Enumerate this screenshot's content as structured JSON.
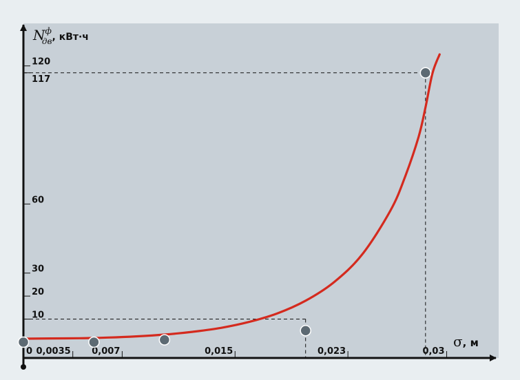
{
  "chart_data": {
    "type": "line",
    "y_label": {
      "symbol": "N",
      "superscript": "ф",
      "subscript": "дв",
      "unit": ", кВт·ч"
    },
    "x_label": {
      "symbol": "σ",
      "unit": ", м"
    },
    "y_ticks": [
      {
        "value": 10,
        "label": "10"
      },
      {
        "value": 20,
        "label": "20"
      },
      {
        "value": 30,
        "label": "30"
      },
      {
        "value": 60,
        "label": "60"
      },
      {
        "value": 117,
        "label": "117"
      },
      {
        "value": 120,
        "label": "120"
      }
    ],
    "x_ticks": [
      {
        "value": 0,
        "label": "0"
      },
      {
        "value": 0.0035,
        "label": "0,0035"
      },
      {
        "value": 0.007,
        "label": "0,007"
      },
      {
        "value": 0.015,
        "label": "0,015"
      },
      {
        "value": 0.023,
        "label": "0,023"
      },
      {
        "value": 0.03,
        "label": "0,03"
      }
    ],
    "points": [
      {
        "x": 0,
        "y": 0
      },
      {
        "x": 0.005,
        "y": 0
      },
      {
        "x": 0.01,
        "y": 1
      },
      {
        "x": 0.02,
        "y": 5
      },
      {
        "x": 0.0285,
        "y": 117
      }
    ],
    "curve": [
      {
        "x": 0,
        "y": 1.5
      },
      {
        "x": 0.002,
        "y": 1.6
      },
      {
        "x": 0.004,
        "y": 1.7
      },
      {
        "x": 0.006,
        "y": 2.0
      },
      {
        "x": 0.008,
        "y": 2.5
      },
      {
        "x": 0.01,
        "y": 3.3
      },
      {
        "x": 0.012,
        "y": 4.5
      },
      {
        "x": 0.014,
        "y": 6.2
      },
      {
        "x": 0.016,
        "y": 8.8
      },
      {
        "x": 0.018,
        "y": 12.5
      },
      {
        "x": 0.02,
        "y": 18
      },
      {
        "x": 0.022,
        "y": 26
      },
      {
        "x": 0.024,
        "y": 38
      },
      {
        "x": 0.026,
        "y": 57
      },
      {
        "x": 0.027,
        "y": 71
      },
      {
        "x": 0.028,
        "y": 89
      },
      {
        "x": 0.0285,
        "y": 102
      },
      {
        "x": 0.029,
        "y": 117
      },
      {
        "x": 0.0295,
        "y": 125
      }
    ],
    "guides": [
      {
        "x": 0.0285,
        "y": 117
      },
      {
        "x": 0.02,
        "y": 10
      }
    ],
    "xlim": [
      0,
      0.033
    ],
    "ylim": [
      0,
      125
    ],
    "colors": {
      "curve": "#d42a1e",
      "point_fill": "#5d6a73",
      "point_stroke": "#ffffff",
      "plot_bg": "#c8d0d7",
      "page_bg": "#e9eef1",
      "axis": "#111111"
    }
  }
}
